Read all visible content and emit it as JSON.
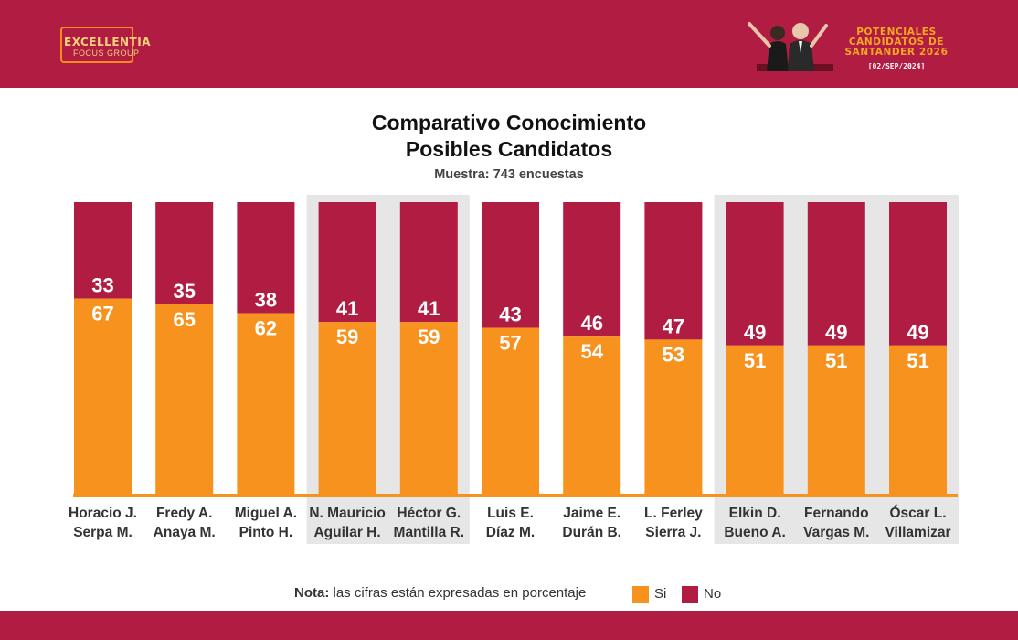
{
  "header": {
    "logo_name": "EXCELLENTIA",
    "logo_sub": "FOCUS GROUP",
    "badge_lines": [
      "POTENCIALES",
      "CANDIDATOS DE",
      "SANTANDER 2026"
    ],
    "badge_date": "[02/SEP/2024]"
  },
  "title_line1": "Comparativo Conocimiento",
  "title_line2": "Posibles Candidatos",
  "subtitle": "Muestra: 743 encuestas",
  "note": {
    "label": "Nota:",
    "text": "las cifras están expresadas en porcentaje",
    "legend": [
      {
        "name": "Si",
        "color": "#f7921e"
      },
      {
        "name": "No",
        "color": "#b01c42"
      }
    ]
  },
  "chart_data": {
    "type": "bar",
    "stacked": true,
    "categories": [
      [
        "Horacio J.",
        "Serpa M."
      ],
      [
        "Fredy A.",
        "Anaya M."
      ],
      [
        "Miguel A.",
        "Pinto H."
      ],
      [
        "N. Mauricio",
        "Aguilar H."
      ],
      [
        "Héctor G.",
        "Mantilla R."
      ],
      [
        "Luis E.",
        "Díaz M."
      ],
      [
        "Jaime E.",
        "Durán B."
      ],
      [
        "L. Ferley",
        "Sierra J."
      ],
      [
        "Elkin D.",
        "Bueno A."
      ],
      [
        "Fernando",
        "Vargas M."
      ],
      [
        "Óscar L.",
        "Villamizar"
      ]
    ],
    "highlighted_groups": [
      [
        3,
        4
      ],
      [
        8,
        10
      ]
    ],
    "series": [
      {
        "name": "Si",
        "color": "#f7921e",
        "values": [
          67,
          65,
          62,
          59,
          59,
          57,
          54,
          53,
          51,
          51,
          51
        ]
      },
      {
        "name": "No",
        "color": "#b01c42",
        "values": [
          33,
          35,
          38,
          41,
          41,
          43,
          46,
          47,
          49,
          49,
          49
        ]
      }
    ],
    "ylim": [
      0,
      100
    ]
  }
}
